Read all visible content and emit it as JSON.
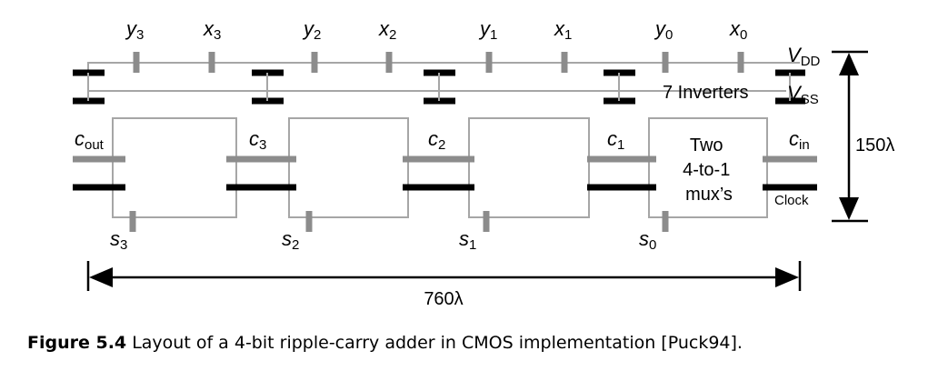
{
  "diagram": {
    "top_inputs": [
      {
        "letter": "y",
        "sub": "3"
      },
      {
        "letter": "x",
        "sub": "3"
      },
      {
        "letter": "y",
        "sub": "2"
      },
      {
        "letter": "x",
        "sub": "2"
      },
      {
        "letter": "y",
        "sub": "1"
      },
      {
        "letter": "x",
        "sub": "1"
      },
      {
        "letter": "y",
        "sub": "0"
      },
      {
        "letter": "x",
        "sub": "0"
      }
    ],
    "carries": [
      {
        "letter": "c",
        "sub": "out"
      },
      {
        "letter": "c",
        "sub": "3"
      },
      {
        "letter": "c",
        "sub": "2"
      },
      {
        "letter": "c",
        "sub": "1"
      },
      {
        "letter": "c",
        "sub": "in"
      }
    ],
    "sums": [
      {
        "letter": "s",
        "sub": "3"
      },
      {
        "letter": "s",
        "sub": "2"
      },
      {
        "letter": "s",
        "sub": "1"
      },
      {
        "letter": "s",
        "sub": "0"
      }
    ],
    "vdd": {
      "letter": "V",
      "sub": "DD"
    },
    "vss": {
      "letter": "V",
      "sub": "SS"
    },
    "inverters_label": "7 Inverters",
    "mux_label": [
      "Two",
      "4-to-1",
      "mux’s"
    ],
    "clock_label": "Clock",
    "height_label": "150λ",
    "width_label": "760λ"
  },
  "caption": {
    "figure_number": "Figure 5.4",
    "text": "Layout of a 4-bit ripple-carry adder in CMOS implementation [Puck94]."
  }
}
